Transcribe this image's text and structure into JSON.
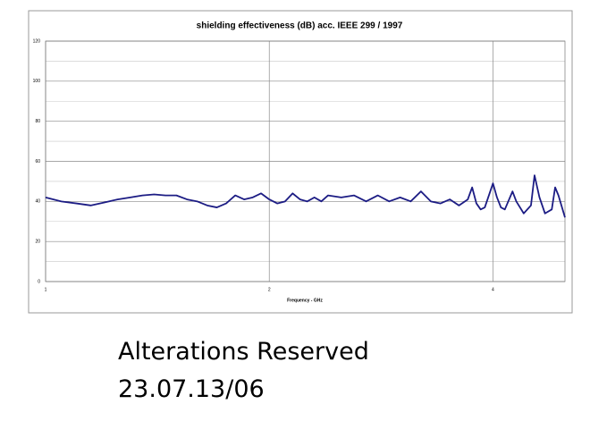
{
  "chart_data": {
    "type": "line",
    "title": "shielding effectiveness (dB) acc. IEEE 299 / 1997",
    "xlabel": "Frequency - GHz",
    "x": [
      1,
      1.05,
      1.1,
      1.15,
      1.2,
      1.25,
      1.3,
      1.35,
      1.4,
      1.45,
      1.5,
      1.55,
      1.6,
      1.65,
      1.7,
      1.75,
      1.8,
      1.85,
      1.9,
      1.95,
      2.0,
      2.05,
      2.1,
      2.15,
      2.2,
      2.25,
      2.3,
      2.35,
      2.4,
      2.5,
      2.6,
      2.7,
      2.8,
      2.9,
      3.0,
      3.1,
      3.2,
      3.3,
      3.4,
      3.5,
      3.6,
      3.7,
      3.75,
      3.8,
      3.85,
      3.9,
      4.0,
      4.05,
      4.1,
      4.15,
      4.25,
      4.3,
      4.4,
      4.5,
      4.55,
      4.62,
      4.7,
      4.8,
      4.85,
      4.9,
      5.0
    ],
    "values": [
      42,
      40,
      39,
      38,
      39.5,
      41,
      42,
      43,
      43.5,
      43,
      43,
      41,
      40,
      38,
      37,
      39,
      43,
      41,
      42,
      44,
      41,
      39,
      40,
      44,
      41,
      40,
      42,
      40,
      43,
      42,
      43,
      40,
      43,
      40,
      42,
      40,
      45,
      40,
      39,
      41,
      38,
      41,
      47,
      39,
      36,
      37,
      49,
      42,
      37,
      36,
      45,
      40,
      34,
      38,
      53,
      42,
      34,
      36,
      47,
      43,
      32
    ],
    "color": "#1c1c84",
    "xscale": "log",
    "xlim": [
      1,
      5
    ],
    "xticks": [
      1,
      2,
      4
    ],
    "ylim": [
      0,
      120
    ],
    "yticks": [
      0,
      20,
      40,
      60,
      80,
      100,
      120
    ],
    "yminorticks": [
      10,
      30,
      50,
      70,
      90,
      110
    ],
    "grid": true
  },
  "footer": {
    "lines": [
      "Alterations Reserved",
      "23.07.13/06"
    ]
  }
}
